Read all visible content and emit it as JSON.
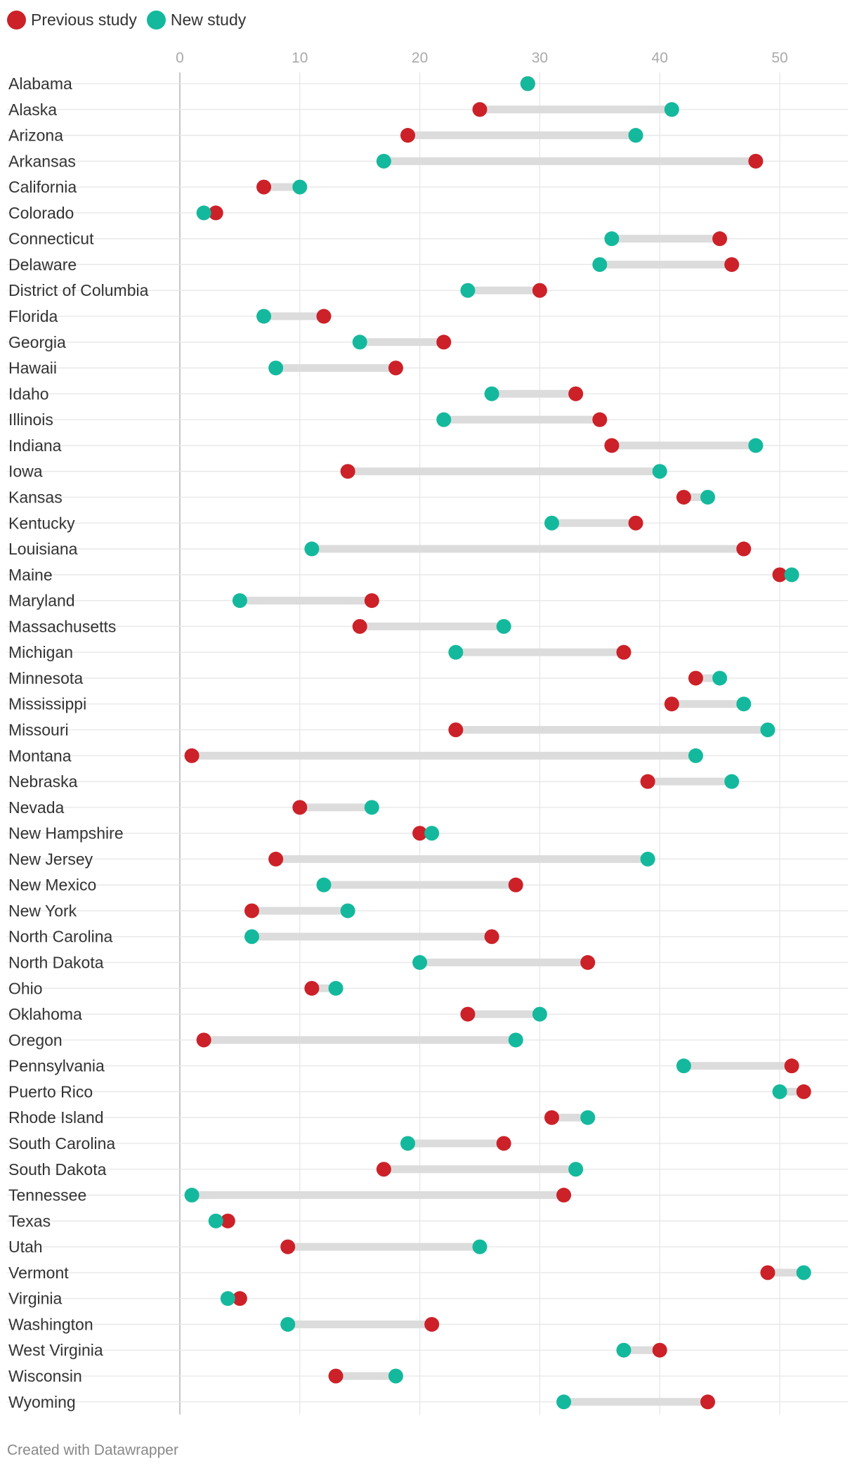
{
  "legend": {
    "items": [
      {
        "label": "Previous study",
        "color": "#cc2128"
      },
      {
        "label": "New study",
        "color": "#14b99d"
      }
    ],
    "placement": "top-left"
  },
  "footer": {
    "credit": "Created with Datawrapper"
  },
  "chart_data": {
    "type": "dot-range",
    "title": "",
    "xlabel": "",
    "ylabel": "",
    "xlim": [
      0,
      56
    ],
    "x_ticks": [
      0,
      10,
      20,
      30,
      40,
      50
    ],
    "grid": true,
    "colors": {
      "previous": "#cc2128",
      "new": "#14b99d",
      "connector": "#dcdcdc"
    },
    "series": [
      {
        "name": "Previous study",
        "key": "prev"
      },
      {
        "name": "New study",
        "key": "new"
      }
    ],
    "rows": [
      {
        "state": "Alabama",
        "prev": 29,
        "new": 29
      },
      {
        "state": "Alaska",
        "prev": 25,
        "new": 41
      },
      {
        "state": "Arizona",
        "prev": 19,
        "new": 38
      },
      {
        "state": "Arkansas",
        "prev": 48,
        "new": 17
      },
      {
        "state": "California",
        "prev": 7,
        "new": 10
      },
      {
        "state": "Colorado",
        "prev": 3,
        "new": 2
      },
      {
        "state": "Connecticut",
        "prev": 45,
        "new": 36
      },
      {
        "state": "Delaware",
        "prev": 46,
        "new": 35
      },
      {
        "state": "District of Columbia",
        "prev": 30,
        "new": 24
      },
      {
        "state": "Florida",
        "prev": 12,
        "new": 7
      },
      {
        "state": "Georgia",
        "prev": 22,
        "new": 15
      },
      {
        "state": "Hawaii",
        "prev": 18,
        "new": 8
      },
      {
        "state": "Idaho",
        "prev": 33,
        "new": 26
      },
      {
        "state": "Illinois",
        "prev": 35,
        "new": 22
      },
      {
        "state": "Indiana",
        "prev": 36,
        "new": 48
      },
      {
        "state": "Iowa",
        "prev": 14,
        "new": 40
      },
      {
        "state": "Kansas",
        "prev": 42,
        "new": 44
      },
      {
        "state": "Kentucky",
        "prev": 38,
        "new": 31
      },
      {
        "state": "Louisiana",
        "prev": 47,
        "new": 11
      },
      {
        "state": "Maine",
        "prev": 50,
        "new": 51
      },
      {
        "state": "Maryland",
        "prev": 16,
        "new": 5
      },
      {
        "state": "Massachusetts",
        "prev": 15,
        "new": 27
      },
      {
        "state": "Michigan",
        "prev": 37,
        "new": 23
      },
      {
        "state": "Minnesota",
        "prev": 43,
        "new": 45
      },
      {
        "state": "Mississippi",
        "prev": 41,
        "new": 47
      },
      {
        "state": "Missouri",
        "prev": 23,
        "new": 49
      },
      {
        "state": "Montana",
        "prev": 1,
        "new": 43
      },
      {
        "state": "Nebraska",
        "prev": 39,
        "new": 46
      },
      {
        "state": "Nevada",
        "prev": 10,
        "new": 16
      },
      {
        "state": "New Hampshire",
        "prev": 20,
        "new": 21
      },
      {
        "state": "New Jersey",
        "prev": 8,
        "new": 39
      },
      {
        "state": "New Mexico",
        "prev": 28,
        "new": 12
      },
      {
        "state": "New York",
        "prev": 6,
        "new": 14
      },
      {
        "state": "North Carolina",
        "prev": 26,
        "new": 6
      },
      {
        "state": "North Dakota",
        "prev": 34,
        "new": 20
      },
      {
        "state": "Ohio",
        "prev": 11,
        "new": 13
      },
      {
        "state": "Oklahoma",
        "prev": 24,
        "new": 30
      },
      {
        "state": "Oregon",
        "prev": 2,
        "new": 28
      },
      {
        "state": "Pennsylvania",
        "prev": 51,
        "new": 42
      },
      {
        "state": "Puerto Rico",
        "prev": 52,
        "new": 50
      },
      {
        "state": "Rhode Island",
        "prev": 31,
        "new": 34
      },
      {
        "state": "South Carolina",
        "prev": 27,
        "new": 19
      },
      {
        "state": "South Dakota",
        "prev": 17,
        "new": 33
      },
      {
        "state": "Tennessee",
        "prev": 32,
        "new": 1
      },
      {
        "state": "Texas",
        "prev": 4,
        "new": 3
      },
      {
        "state": "Utah",
        "prev": 9,
        "new": 25
      },
      {
        "state": "Vermont",
        "prev": 49,
        "new": 52
      },
      {
        "state": "Virginia",
        "prev": 5,
        "new": 4
      },
      {
        "state": "Washington",
        "prev": 21,
        "new": 9
      },
      {
        "state": "West Virginia",
        "prev": 40,
        "new": 37
      },
      {
        "state": "Wisconsin",
        "prev": 13,
        "new": 18
      },
      {
        "state": "Wyoming",
        "prev": 44,
        "new": 32
      }
    ]
  }
}
